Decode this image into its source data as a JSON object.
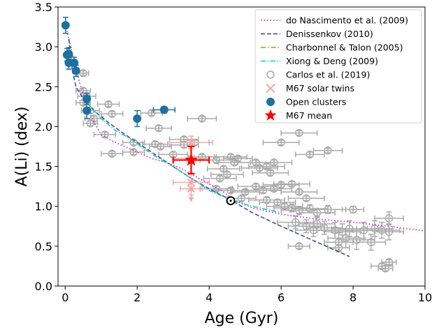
{
  "chart_data": {
    "type": "scatter",
    "xlabel": "Age (Gyr)",
    "ylabel": "A(Li) (dex)",
    "xlim": [
      -0.2,
      10
    ],
    "ylim": [
      0.0,
      3.5
    ],
    "xticks": [
      0,
      2,
      4,
      6,
      8,
      10
    ],
    "yticks": [
      0.0,
      0.5,
      1.0,
      1.5,
      2.0,
      2.5,
      3.0,
      3.5
    ],
    "xtick_labels": [
      "0",
      "2",
      "4",
      "6",
      "8",
      "10"
    ],
    "ytick_labels": [
      "0.0",
      "0.5",
      "1.0",
      "1.5",
      "2.0",
      "2.5",
      "3.0",
      "3.5"
    ],
    "grid": false,
    "legend_position": "top-right",
    "legend": [
      {
        "label": "do Nascimento et al. (2009)",
        "kind": "line",
        "color": "#cc22cc",
        "dash": "1.5,3"
      },
      {
        "label": "Denissenkov (2010)",
        "kind": "line",
        "color": "#4a5d8a",
        "dash": "6,3"
      },
      {
        "label": "Charbonnel & Talon (2005)",
        "kind": "line",
        "color": "#c8a020",
        "dash": "7,3,1.5,3"
      },
      {
        "label": "Xiong & Deng (2009)",
        "kind": "line",
        "color": "#22cccc",
        "dash": "7,2.5,1.5,2.5"
      },
      {
        "label": "Carlos et al. (2019)",
        "kind": "open-circle",
        "color": "#aaaaaa"
      },
      {
        "label": "M67 solar twins",
        "kind": "x",
        "color": "#f4a8a8"
      },
      {
        "label": "Open clusters",
        "kind": "filled-circle",
        "color": "#1f6fa0"
      },
      {
        "label": "M67 mean",
        "kind": "star",
        "color": "#ff0000"
      }
    ],
    "series": [
      {
        "name": "do Nascimento et al. (2009)",
        "kind": "line",
        "color": "#cc22cc",
        "points": [
          [
            0.05,
            3.2
          ],
          [
            0.2,
            2.9
          ],
          [
            0.4,
            2.55
          ],
          [
            0.6,
            2.25
          ],
          [
            0.8,
            2.05
          ],
          [
            1.0,
            1.9
          ],
          [
            1.3,
            1.82
          ],
          [
            1.6,
            1.76
          ],
          [
            2.0,
            1.68
          ],
          [
            2.4,
            1.6
          ],
          [
            2.8,
            1.55
          ],
          [
            3.2,
            1.48
          ],
          [
            3.6,
            1.38
          ],
          [
            4.0,
            1.28
          ],
          [
            4.4,
            1.18
          ],
          [
            4.7,
            1.08
          ],
          [
            5.2,
            0.98
          ],
          [
            6.0,
            0.9
          ],
          [
            7.0,
            0.84
          ],
          [
            8.0,
            0.8
          ],
          [
            9.0,
            0.75
          ],
          [
            10.0,
            0.69
          ]
        ]
      },
      {
        "name": "Denissenkov (2010)",
        "kind": "line",
        "color": "#4a5d8a",
        "points": [
          [
            0.1,
            3.1
          ],
          [
            0.2,
            2.7
          ],
          [
            0.3,
            2.5
          ],
          [
            0.5,
            2.35
          ],
          [
            0.8,
            2.2
          ],
          [
            1.2,
            2.05
          ],
          [
            1.6,
            1.92
          ],
          [
            2.0,
            1.8
          ],
          [
            2.5,
            1.65
          ],
          [
            3.0,
            1.5
          ],
          [
            3.5,
            1.35
          ],
          [
            4.0,
            1.22
          ],
          [
            4.6,
            1.08
          ],
          [
            5.2,
            0.92
          ],
          [
            6.0,
            0.75
          ],
          [
            6.5,
            0.65
          ],
          [
            7.0,
            0.55
          ],
          [
            7.5,
            0.45
          ],
          [
            7.9,
            0.37
          ]
        ]
      },
      {
        "name": "Xiong & Deng (2009)",
        "kind": "line",
        "color": "#22cccc",
        "points": [
          [
            0.6,
            2.3
          ],
          [
            0.8,
            2.2
          ],
          [
            1.0,
            2.1
          ],
          [
            1.4,
            1.95
          ],
          [
            1.8,
            1.85
          ],
          [
            2.2,
            1.72
          ],
          [
            2.6,
            1.6
          ],
          [
            3.0,
            1.5
          ],
          [
            3.5,
            1.35
          ],
          [
            4.0,
            1.2
          ],
          [
            4.6,
            1.08
          ],
          [
            5.2,
            1.0
          ],
          [
            6.0,
            0.92
          ]
        ]
      },
      {
        "name": "Carlos et al. (2019)",
        "kind": "open-circle",
        "color": "#aaaaaa",
        "points": [
          [
            0.5,
            2.67,
            0.15,
            0.03
          ],
          [
            0.5,
            2.45,
            0.2,
            0.03
          ],
          [
            0.6,
            2.38,
            0.25,
            0.03
          ],
          [
            0.5,
            2.3,
            0.2,
            0.03
          ],
          [
            0.7,
            2.2,
            0.25,
            0.03
          ],
          [
            0.8,
            2.1,
            0.25,
            0.03
          ],
          [
            0.7,
            2.04,
            0.2,
            0.03
          ],
          [
            1.2,
            2.28,
            0.3,
            0.03
          ],
          [
            1.3,
            2.16,
            0.3,
            0.03
          ],
          [
            1.1,
            1.9,
            0.3,
            0.03
          ],
          [
            1.3,
            1.66,
            0.3,
            0.03
          ],
          [
            1.9,
            1.8,
            0.3,
            0.03
          ],
          [
            2.4,
            2.17,
            0.3,
            0.03
          ],
          [
            2.6,
            1.98,
            0.35,
            0.03
          ],
          [
            2.5,
            1.78,
            0.35,
            0.03
          ],
          [
            2.65,
            1.75,
            0.3,
            0.03
          ],
          [
            1.9,
            1.68,
            0.3,
            0.03
          ],
          [
            3.3,
            1.84,
            0.4,
            0.03
          ],
          [
            3.8,
            2.1,
            0.4,
            0.03
          ],
          [
            3.6,
            1.8,
            0.4,
            0.03
          ],
          [
            3.3,
            1.77,
            0.4,
            0.03
          ],
          [
            3.0,
            1.65,
            0.4,
            0.03
          ],
          [
            3.8,
            1.62,
            0.4,
            0.03
          ],
          [
            4.2,
            1.58,
            0.45,
            0.03
          ],
          [
            4.6,
            1.62,
            0.45,
            0.03
          ],
          [
            4.7,
            1.55,
            0.45,
            0.03
          ],
          [
            4.8,
            1.6,
            0.4,
            0.03
          ],
          [
            4.4,
            1.47,
            0.45,
            0.03
          ],
          [
            4.5,
            1.4,
            0.45,
            0.03
          ],
          [
            4.3,
            1.35,
            0.45,
            0.03
          ],
          [
            4.2,
            1.22,
            0.45,
            0.03
          ],
          [
            4.6,
            1.2,
            0.45,
            0.03
          ],
          [
            5.0,
            1.18,
            0.4,
            0.03
          ],
          [
            4.9,
            1.1,
            0.4,
            0.03
          ],
          [
            5.3,
            1.55,
            0.5,
            0.03
          ],
          [
            5.4,
            1.48,
            0.5,
            0.03
          ],
          [
            5.6,
            1.5,
            0.5,
            0.03
          ],
          [
            5.8,
            1.55,
            0.5,
            0.03
          ],
          [
            5.7,
            1.42,
            0.5,
            0.03
          ],
          [
            5.3,
            1.25,
            0.5,
            0.03
          ],
          [
            5.5,
            1.2,
            0.5,
            0.03
          ],
          [
            5.8,
            1.22,
            0.5,
            0.03
          ],
          [
            6.0,
            1.27,
            0.5,
            0.03
          ],
          [
            6.3,
            1.28,
            0.5,
            0.03
          ],
          [
            5.6,
            1.08,
            0.5,
            0.03
          ],
          [
            5.9,
            1.05,
            0.5,
            0.03
          ],
          [
            6.1,
            1.0,
            0.5,
            0.03
          ],
          [
            6.5,
            1.18,
            0.5,
            0.03
          ],
          [
            6.7,
            1.1,
            0.5,
            0.03
          ],
          [
            6.0,
            1.8,
            0.5,
            0.03
          ],
          [
            6.5,
            1.92,
            0.5,
            0.03
          ],
          [
            6.8,
            1.65,
            0.4,
            0.03
          ],
          [
            7.3,
            1.7,
            0.4,
            0.03
          ],
          [
            6.3,
            0.98,
            0.5,
            0.05
          ],
          [
            6.5,
            0.95,
            0.5,
            0.05
          ],
          [
            6.8,
            0.97,
            0.5,
            0.05
          ],
          [
            7.0,
            0.92,
            0.5,
            0.05
          ],
          [
            7.3,
            0.96,
            0.5,
            0.05
          ],
          [
            6.4,
            0.8,
            0.5,
            0.08
          ],
          [
            6.7,
            0.75,
            0.5,
            0.08
          ],
          [
            7.0,
            0.78,
            0.5,
            0.08
          ],
          [
            7.2,
            0.73,
            0.5,
            0.08
          ],
          [
            6.9,
            0.7,
            0.5,
            0.08
          ],
          [
            7.5,
            0.7,
            0.5,
            0.1
          ],
          [
            7.7,
            0.68,
            0.5,
            0.1
          ],
          [
            7.9,
            0.72,
            0.5,
            0.1
          ],
          [
            8.0,
            0.96,
            0.3,
            0.04
          ],
          [
            8.3,
            0.7,
            0.5,
            0.1
          ],
          [
            8.6,
            0.72,
            0.5,
            0.1
          ],
          [
            8.8,
            0.7,
            0.5,
            0.1
          ],
          [
            9.0,
            0.68,
            0.4,
            0.1
          ],
          [
            9.0,
            0.85,
            0.4,
            0.08
          ],
          [
            7.8,
            0.6,
            0.5,
            0.12
          ],
          [
            8.1,
            0.58,
            0.5,
            0.12
          ],
          [
            7.6,
            0.55,
            0.4,
            0.12
          ],
          [
            8.5,
            0.55,
            0.4,
            0.1
          ],
          [
            6.5,
            0.5,
            0.3,
            0.03
          ],
          [
            7.6,
            0.48,
            0.3,
            0.03
          ],
          [
            8.8,
            0.25,
            0.3,
            0.03
          ],
          [
            8.9,
            0.22,
            0.2,
            0.03
          ],
          [
            9.0,
            0.3,
            0.2,
            0.03
          ]
        ]
      },
      {
        "name": "M67 solar twins",
        "kind": "x",
        "color": "#f4a8a8",
        "points": [
          [
            3.5,
            1.8,
            0.6,
            0.08
          ],
          [
            3.5,
            1.6,
            0.5,
            0.2
          ],
          [
            3.5,
            1.3,
            0.5,
            0.1
          ],
          [
            3.5,
            1.22,
            0.3,
            0.08
          ]
        ]
      },
      {
        "name": "Open clusters",
        "kind": "filled-circle",
        "color": "#1f6fa0",
        "points": [
          [
            0.01,
            3.27,
            0.01,
            0.1
          ],
          [
            0.05,
            2.9,
            0.03,
            0.08
          ],
          [
            0.1,
            2.91,
            0.04,
            0.08
          ],
          [
            0.1,
            2.8,
            0.05,
            0.08
          ],
          [
            0.25,
            2.8,
            0.05,
            0.07
          ],
          [
            0.3,
            2.7,
            0.06,
            0.07
          ],
          [
            0.6,
            2.35,
            0.05,
            0.07
          ],
          [
            0.6,
            2.2,
            0.08,
            0.1
          ],
          [
            2.0,
            2.1,
            0.05,
            0.1
          ],
          [
            2.75,
            2.21,
            0.3,
            0.04
          ]
        ]
      },
      {
        "name": "M67 mean",
        "kind": "star",
        "color": "#ff0000",
        "points": [
          [
            3.5,
            1.58,
            0.5,
            0.17
          ]
        ]
      }
    ],
    "sun_marker": {
      "x": 4.6,
      "y": 1.07
    }
  }
}
